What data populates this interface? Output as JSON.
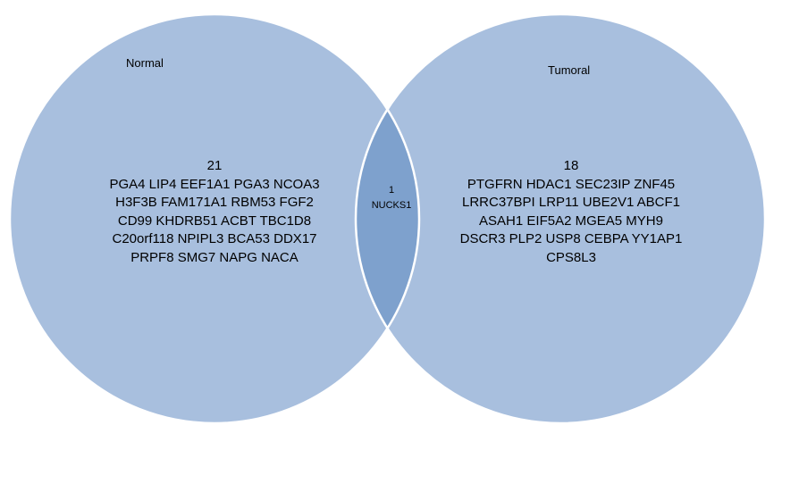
{
  "venn": {
    "colors": {
      "circle_fill": "#a8bfde",
      "overlap_fill": "#7ea1cd",
      "outline": "#ffffff"
    },
    "left": {
      "name": "Normal",
      "count": "21",
      "genes": [
        "PGA4 LIP4 EEF1A1 PGA3 NCOA3",
        "H3F3B FAM171A1 RBM53 FGF2",
        "CD99 KHDRB51 ACBT TBC1D8",
        "C20orf118 NPIPL3 BCA53 DDX17",
        "PRPF8 SMG7 NAPG NACA"
      ]
    },
    "overlap": {
      "count": "1",
      "genes": [
        "NUCKS1"
      ]
    },
    "right": {
      "name": "Tumoral",
      "count": "18",
      "genes": [
        "PTGFRN HDAC1 SEC23IP ZNF45",
        "LRRC37BPI LRP11 UBE2V1 ABCF1",
        "ASAH1 EIF5A2 MGEA5 MYH9",
        "DSCR3 PLP2 USP8 CEBPA YY1AP1",
        "CPS8L3"
      ]
    }
  }
}
